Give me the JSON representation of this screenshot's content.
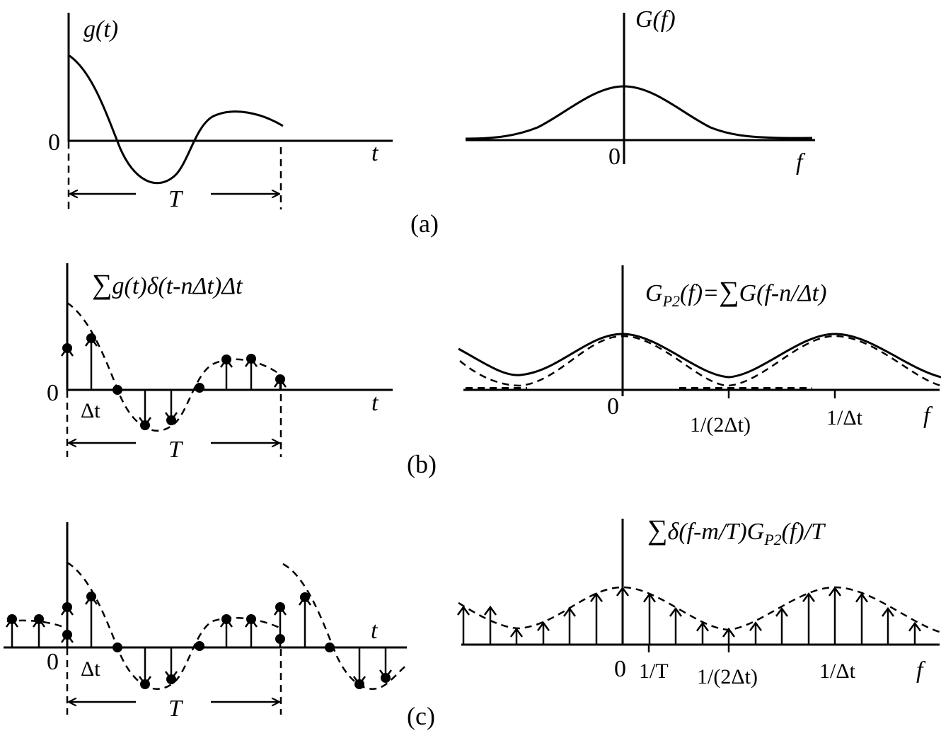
{
  "panels": {
    "a": {
      "caption": "(a)",
      "time": {
        "ylabel": "g(t)",
        "zero": "0",
        "xlabel": "t",
        "span": "T"
      },
      "freq": {
        "ylabel": "G(f)",
        "zero": "0",
        "xlabel": "f"
      }
    },
    "b": {
      "caption": "(b)",
      "time": {
        "ylabel_sum": "∑",
        "ylabel_rest": "g(t)δ(t-nΔt)Δt",
        "zero": "0",
        "step": "Δt",
        "xlabel": "t",
        "span": "T"
      },
      "freq": {
        "ylabel_g": "G",
        "ylabel_sub": "P2",
        "ylabel_mid": "(f)=",
        "ylabel_sum": "∑",
        "ylabel_rest": "G(f-n/Δt)",
        "zero": "0",
        "half": "1/(2Δt)",
        "full": "1/Δt",
        "xlabel": "f"
      }
    },
    "c": {
      "caption": "(c)",
      "time": {
        "zero": "0",
        "step": "Δt",
        "xlabel": "t",
        "span": "T"
      },
      "freq": {
        "ylabel_sum": "∑",
        "ylabel_mid": "δ(f-m/T)G",
        "ylabel_sub": "P2",
        "ylabel_rest": "(f)/T",
        "zero": "0",
        "inv_t": "1/T",
        "half": "1/(2Δt)",
        "full": "1/Δt",
        "xlabel": "f"
      }
    }
  }
}
